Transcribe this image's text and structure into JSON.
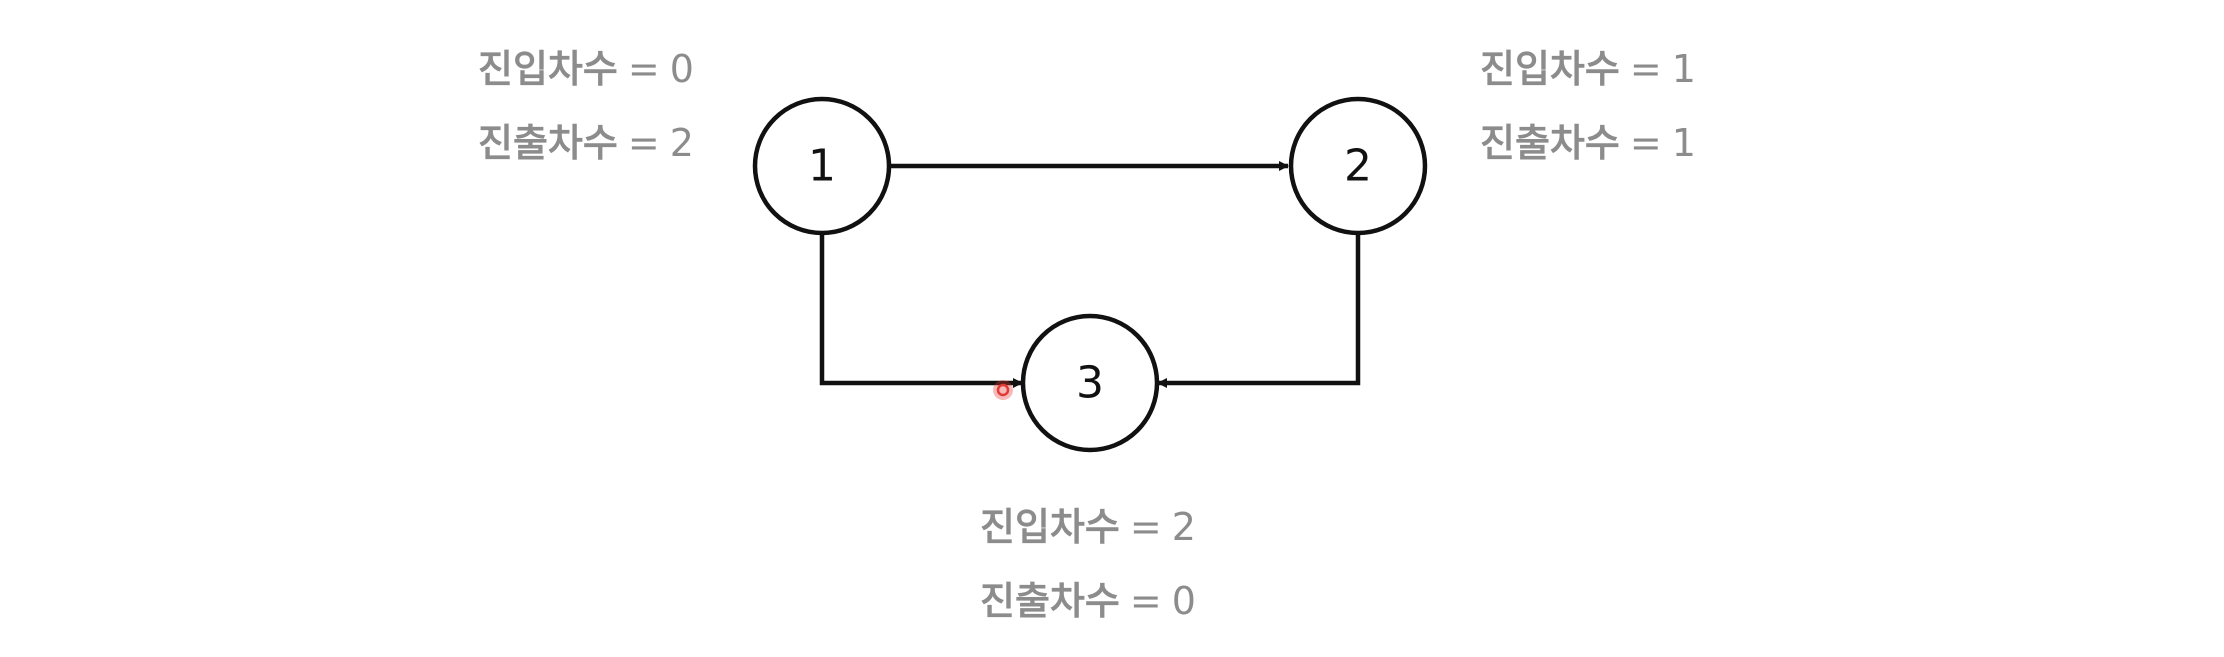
{
  "nodes": [
    {
      "id": "1",
      "label": "1"
    },
    {
      "id": "2",
      "label": "2"
    },
    {
      "id": "3",
      "label": "3"
    }
  ],
  "edges": [
    {
      "from": "1",
      "to": "2"
    },
    {
      "from": "1",
      "to": "3"
    },
    {
      "from": "2",
      "to": "3"
    }
  ],
  "degrees": {
    "node1": {
      "in_label": "진입차수",
      "in_value": "0",
      "out_label": "진출차수",
      "out_value": "2"
    },
    "node2": {
      "in_label": "진입차수",
      "in_value": "1",
      "out_label": "진출차수",
      "out_value": "1"
    },
    "node3": {
      "in_label": "진입차수",
      "in_value": "2",
      "out_label": "진출차수",
      "out_value": "0"
    }
  },
  "equals_sign": "=",
  "colors": {
    "stroke": "#111111",
    "degree_text": "#8c8c8c",
    "cursor": "#e53935"
  }
}
